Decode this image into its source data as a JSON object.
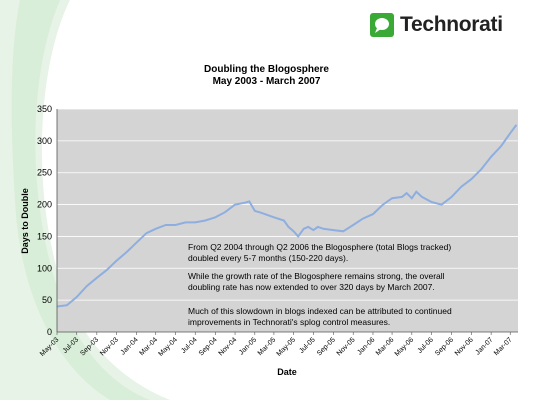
{
  "brand": {
    "name": "Technorati",
    "accent": "#3aa935"
  },
  "chart_data": {
    "type": "line",
    "title": "Doubling the Blogosphere",
    "subtitle": "May 2003 - March 2007",
    "xlabel": "Date",
    "ylabel": "Days to Double",
    "ylim": [
      0,
      350
    ],
    "yticks": [
      0,
      50,
      100,
      150,
      200,
      250,
      300,
      350
    ],
    "grid": true,
    "x_tick_labels": [
      "May-03",
      "Jul-03",
      "Sep-03",
      "Nov-03",
      "Jan-04",
      "Mar-04",
      "May-04",
      "Jul-04",
      "Sep-04",
      "Nov-04",
      "Jan-05",
      "Mar-05",
      "May-05",
      "Jul-05",
      "Sep-05",
      "Nov-05",
      "Jan-06",
      "Mar-06",
      "May-06",
      "Jul-06",
      "Sep-06",
      "Nov-06",
      "Jan-07",
      "Mar-07"
    ],
    "line_color": "#8eaee0",
    "plot_background": "#d4d4d4",
    "series": [
      {
        "x": [
          "2003-05-01",
          "2003-06-01",
          "2003-07-01",
          "2003-08-01",
          "2003-09-01",
          "2003-10-01",
          "2003-11-01",
          "2003-12-01",
          "2004-01-01",
          "2004-02-01",
          "2004-03-01",
          "2004-04-01",
          "2004-05-01",
          "2004-06-01",
          "2004-07-01",
          "2004-08-01",
          "2004-09-01",
          "2004-10-01",
          "2004-11-01",
          "2004-12-01",
          "2004-12-15",
          "2005-01-01",
          "2005-01-15",
          "2005-02-01",
          "2005-03-01",
          "2005-04-01",
          "2005-04-15",
          "2005-05-01",
          "2005-05-15",
          "2005-06-01",
          "2005-06-15",
          "2005-07-01",
          "2005-07-15",
          "2005-08-01",
          "2005-09-01",
          "2005-10-01",
          "2005-11-01",
          "2005-12-01",
          "2006-01-01",
          "2006-02-01",
          "2006-03-01",
          "2006-04-01",
          "2006-04-15",
          "2006-05-01",
          "2006-05-15",
          "2006-06-01",
          "2006-07-01",
          "2006-08-01",
          "2006-09-01",
          "2006-10-01",
          "2006-11-01",
          "2006-12-01",
          "2007-01-01",
          "2007-02-01",
          "2007-03-01",
          "2007-03-20"
        ],
        "values": [
          40,
          42,
          55,
          72,
          85,
          97,
          112,
          125,
          140,
          155,
          162,
          168,
          168,
          172,
          172,
          175,
          180,
          188,
          200,
          203,
          205,
          190,
          188,
          185,
          180,
          175,
          165,
          158,
          150,
          162,
          165,
          160,
          165,
          162,
          160,
          158,
          168,
          178,
          185,
          200,
          210,
          212,
          218,
          210,
          220,
          212,
          204,
          200,
          212,
          228,
          240,
          255,
          275,
          292,
          312,
          325
        ]
      }
    ]
  },
  "annotations": {
    "p1_l1": "From Q2 2004 through Q2 2006 the Blogosphere (total Blogs tracked)",
    "p1_l2": "doubled every 5-7 months (150-220 days).",
    "p2_l1": "While the growth rate of the Blogosphere remains strong, the overall",
    "p2_l2": "doubling rate has now extended to over 320 days by March 2007.",
    "p3_l1": "Much of this slowdown in blogs indexed can be attributed to continued",
    "p3_l2": "improvements in Technorati's splog control measures."
  }
}
